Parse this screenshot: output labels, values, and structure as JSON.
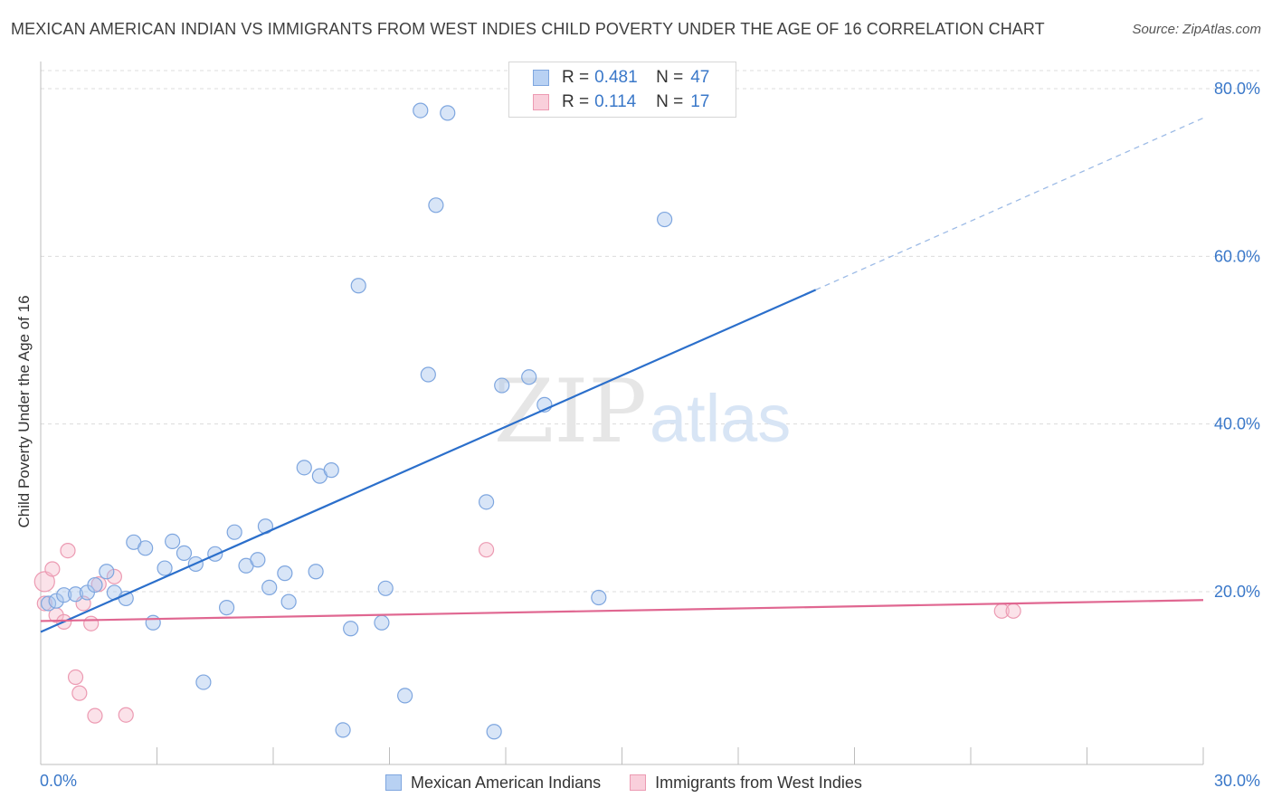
{
  "chart_data": {
    "type": "scatter",
    "title": "MEXICAN AMERICAN INDIAN VS IMMIGRANTS FROM WEST INDIES CHILD POVERTY UNDER THE AGE OF 16 CORRELATION CHART",
    "source": "Source: ZipAtlas.com",
    "xlabel": "",
    "ylabel": "Child Poverty Under the Age of 16",
    "xlim": [
      0,
      30
    ],
    "ylim": [
      0,
      82
    ],
    "x_tick_labels": [
      "0.0%",
      "30.0%"
    ],
    "y_ticks": [
      {
        "value": 20,
        "label": "20.0%"
      },
      {
        "value": 40,
        "label": "40.0%"
      },
      {
        "value": 60,
        "label": "60.0%"
      },
      {
        "value": 80,
        "label": "80.0%"
      }
    ],
    "watermark": "ZIPatlas",
    "series": [
      {
        "name": "Mexican American Indians",
        "color": "#a9c6ee",
        "edge": "#7ea6df",
        "line_color": "#2b6fcb",
        "R": "0.481",
        "N": "47",
        "trend": {
          "x0": 0,
          "y0": 15.2,
          "x1": 20,
          "y1": 56.0,
          "dashed_to_x": 30,
          "dashed_to_y": 76.5
        },
        "points": [
          [
            0.2,
            18.6
          ],
          [
            0.4,
            18.9
          ],
          [
            0.6,
            19.6
          ],
          [
            0.9,
            19.7
          ],
          [
            1.2,
            19.9
          ],
          [
            1.4,
            20.8
          ],
          [
            1.7,
            22.4
          ],
          [
            1.9,
            19.9
          ],
          [
            2.2,
            19.2
          ],
          [
            2.4,
            25.9
          ],
          [
            2.7,
            25.2
          ],
          [
            2.9,
            16.3
          ],
          [
            3.2,
            22.8
          ],
          [
            3.4,
            26.0
          ],
          [
            3.7,
            24.6
          ],
          [
            4.0,
            23.3
          ],
          [
            4.2,
            9.2
          ],
          [
            4.5,
            24.5
          ],
          [
            4.8,
            18.1
          ],
          [
            5.0,
            27.1
          ],
          [
            5.3,
            23.1
          ],
          [
            5.6,
            23.8
          ],
          [
            5.8,
            27.8
          ],
          [
            5.9,
            20.5
          ],
          [
            6.3,
            22.2
          ],
          [
            6.4,
            18.8
          ],
          [
            6.8,
            34.8
          ],
          [
            7.1,
            22.4
          ],
          [
            7.2,
            33.8
          ],
          [
            7.5,
            34.5
          ],
          [
            7.8,
            3.5
          ],
          [
            8.0,
            15.6
          ],
          [
            8.2,
            56.5
          ],
          [
            8.8,
            16.3
          ],
          [
            8.9,
            20.4
          ],
          [
            9.4,
            7.6
          ],
          [
            9.8,
            77.4
          ],
          [
            10.0,
            45.9
          ],
          [
            10.2,
            66.1
          ],
          [
            10.5,
            77.1
          ],
          [
            11.5,
            30.7
          ],
          [
            11.7,
            3.3
          ],
          [
            11.9,
            44.6
          ],
          [
            12.6,
            45.6
          ],
          [
            13.0,
            42.3
          ],
          [
            14.4,
            19.3
          ],
          [
            16.1,
            64.4
          ]
        ]
      },
      {
        "name": "Immigrants from West Indies",
        "color": "#f6bfcf",
        "edge": "#ec9ab2",
        "line_color": "#e06791",
        "R": "0.114",
        "N": "17",
        "trend": {
          "x0": 0,
          "y0": 16.5,
          "x1": 30,
          "y1": 19.0
        },
        "points": [
          [
            0.1,
            21.2
          ],
          [
            0.3,
            22.7
          ],
          [
            0.4,
            17.2
          ],
          [
            0.6,
            16.4
          ],
          [
            0.7,
            24.9
          ],
          [
            0.9,
            9.8
          ],
          [
            1.0,
            7.9
          ],
          [
            1.1,
            18.6
          ],
          [
            1.3,
            16.2
          ],
          [
            1.4,
            5.2
          ],
          [
            1.5,
            20.9
          ],
          [
            1.9,
            21.8
          ],
          [
            2.2,
            5.3
          ],
          [
            11.5,
            25.0
          ],
          [
            24.8,
            17.7
          ],
          [
            25.1,
            17.7
          ],
          [
            0.1,
            18.6
          ]
        ]
      }
    ]
  }
}
